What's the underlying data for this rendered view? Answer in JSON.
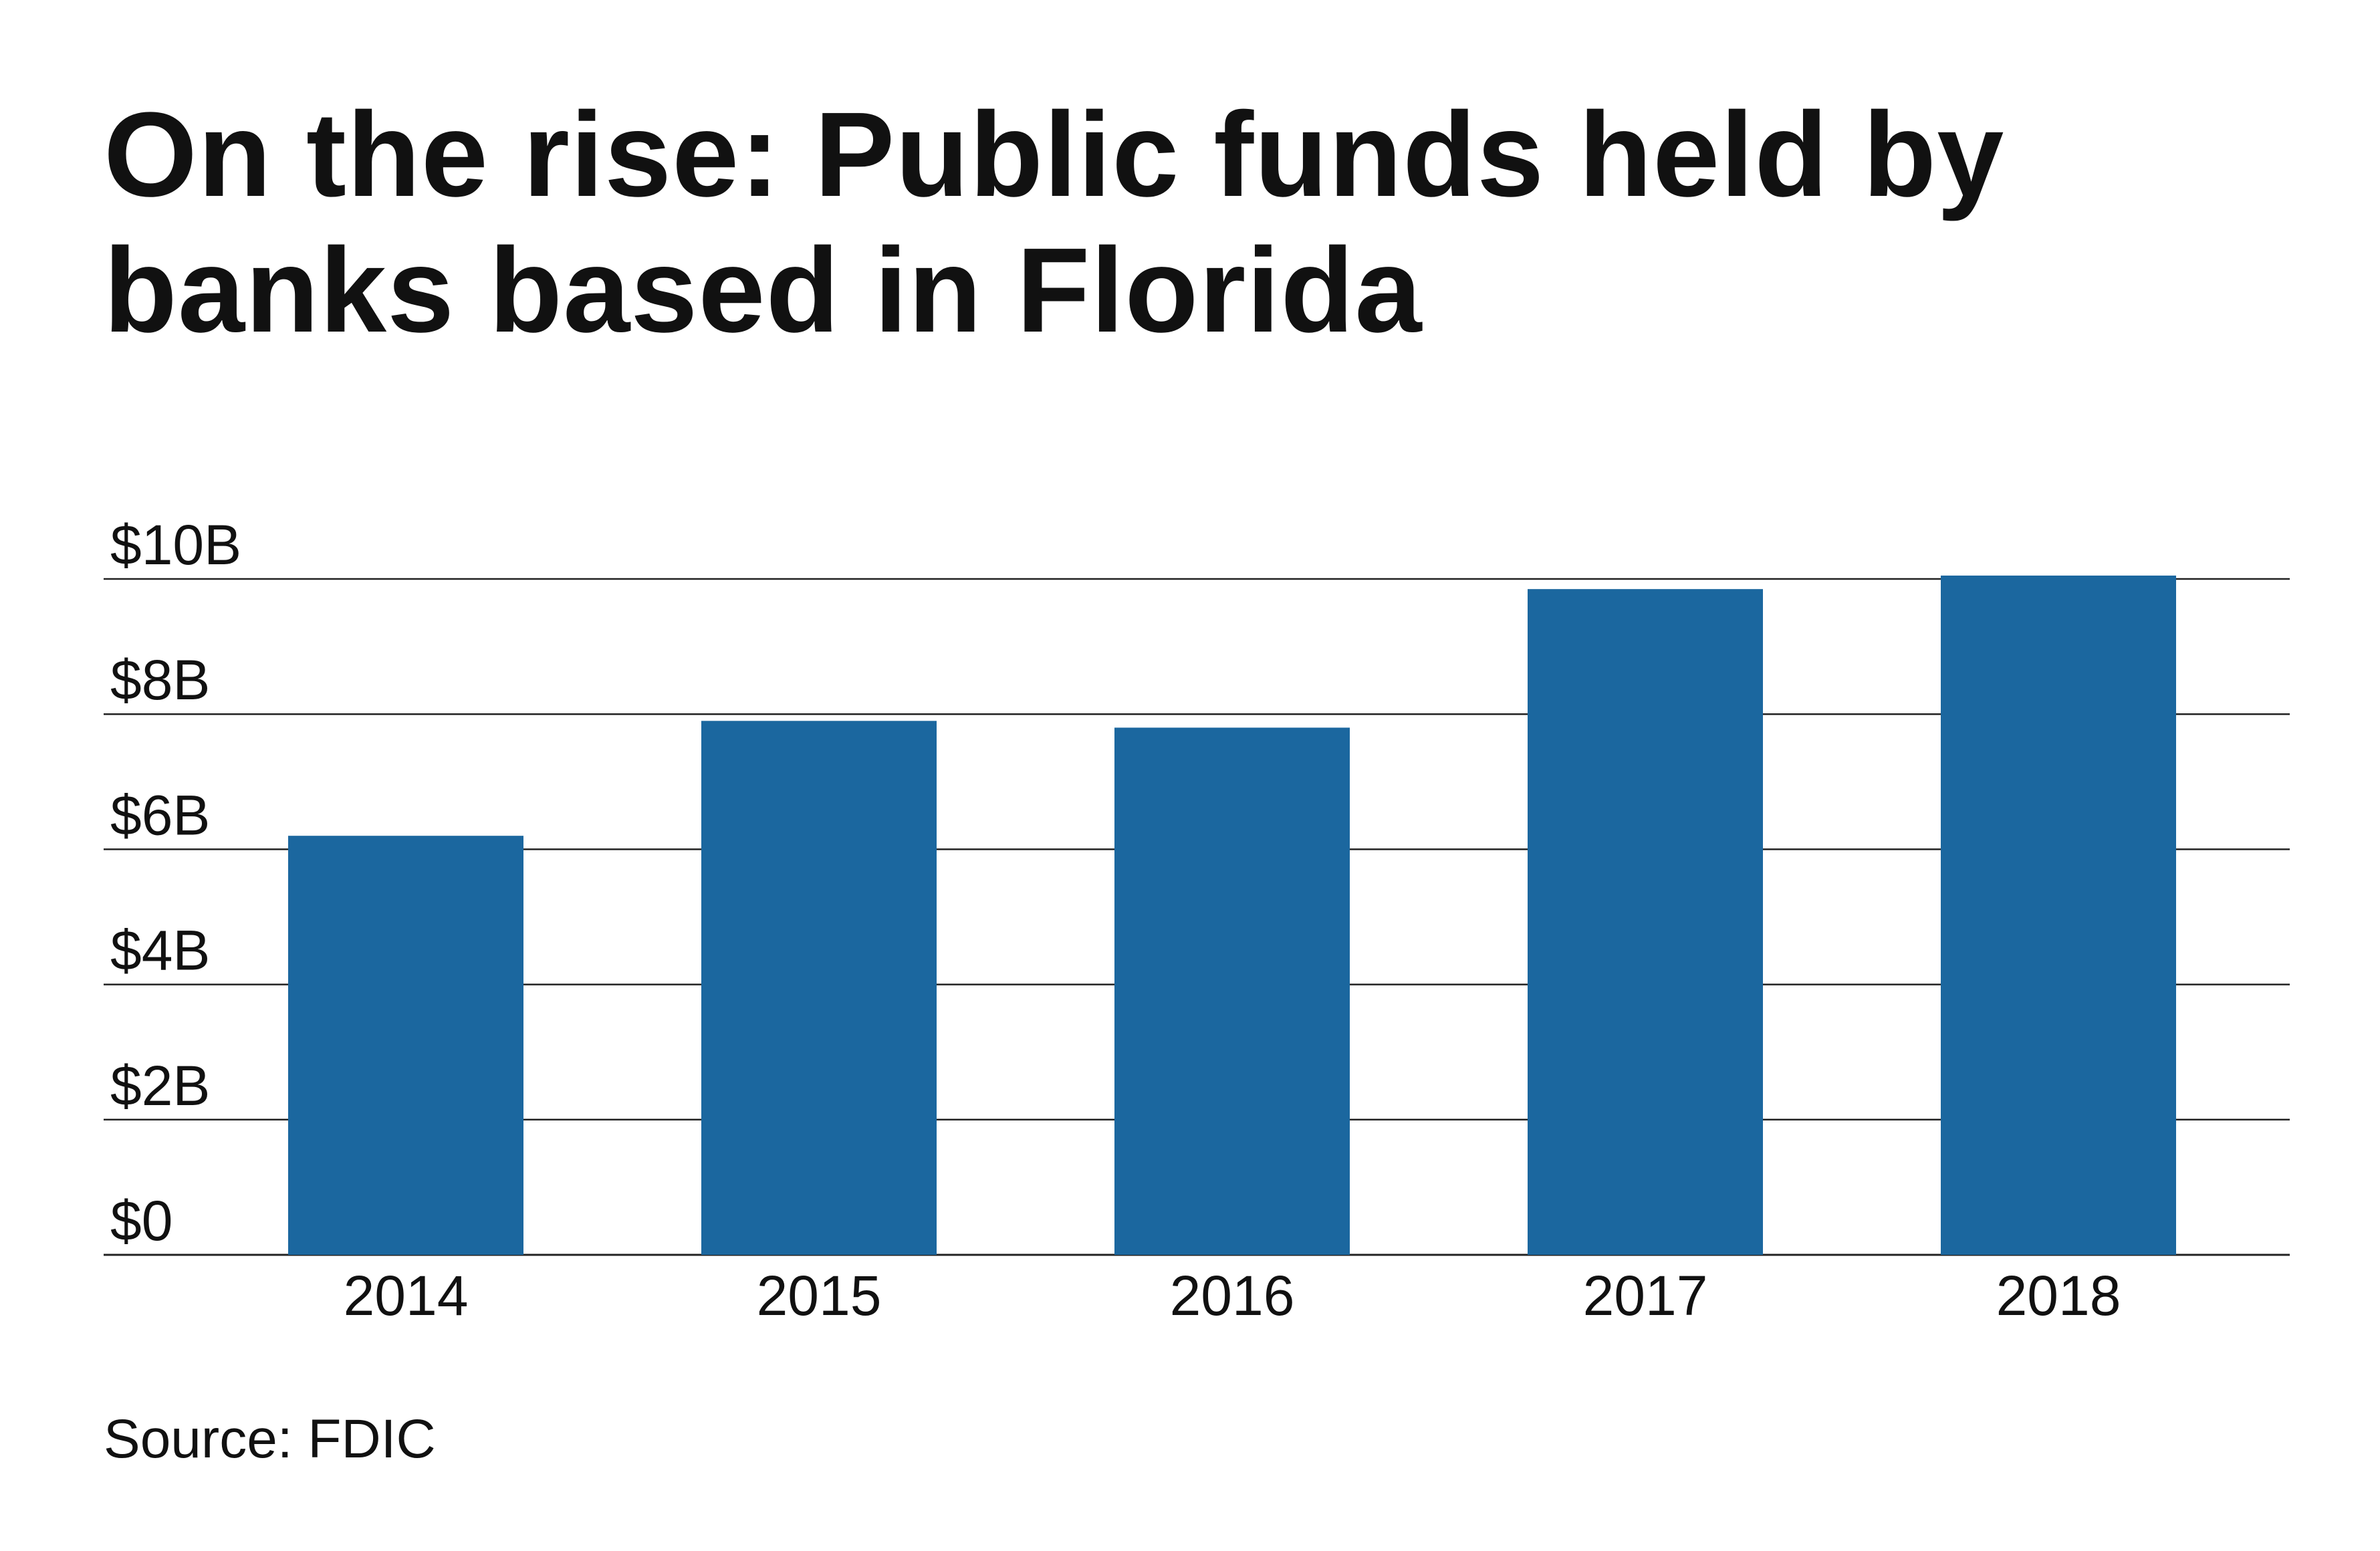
{
  "title": "On the rise: Public funds held by banks based in Florida",
  "source": "Source: FDIC",
  "colors": {
    "bar": "#1b679f",
    "gridline": "#222222",
    "text": "#111111"
  },
  "chart_data": {
    "type": "bar",
    "title": "On the rise: Public funds held by banks based in Florida",
    "xlabel": "",
    "ylabel": "",
    "categories": [
      "2014",
      "2015",
      "2016",
      "2017",
      "2018"
    ],
    "values": [
      6.2,
      7.9,
      7.8,
      9.85,
      10.05
    ],
    "unit": "$ billions",
    "ylim": [
      0,
      10
    ],
    "yticks": [
      0,
      2,
      4,
      6,
      8,
      10
    ],
    "ytick_labels": [
      "$0",
      "$2B",
      "$4B",
      "$6B",
      "$8B",
      "$10B"
    ],
    "grid": true,
    "legend": "none"
  }
}
